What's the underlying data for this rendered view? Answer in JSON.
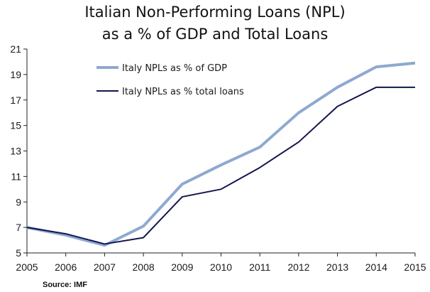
{
  "chart_data": {
    "type": "line",
    "title_line1": "Italian Non-Performing Loans (NPL)",
    "title_line2": "as a % of GDP and Total Loans",
    "xlabel": "",
    "ylabel": "",
    "x": [
      2005,
      2006,
      2007,
      2008,
      2009,
      2010,
      2011,
      2012,
      2013,
      2014,
      2015
    ],
    "ylim": [
      5,
      21
    ],
    "yticks": [
      5,
      7,
      9,
      11,
      13,
      15,
      17,
      19,
      21
    ],
    "grid": false,
    "legend_position": "top-left",
    "series": [
      {
        "name": "Italy NPLs as % of GDP",
        "color": "#8ea9d0",
        "values": [
          7.0,
          6.4,
          5.6,
          7.1,
          10.4,
          11.9,
          13.3,
          16.0,
          18.0,
          19.6,
          19.9
        ]
      },
      {
        "name": "Italy NPLs as % total loans",
        "color": "#13154f",
        "values": [
          7.0,
          6.5,
          5.7,
          6.2,
          9.4,
          10.0,
          11.7,
          13.7,
          16.5,
          18.0,
          18.0
        ]
      }
    ],
    "source": "Source: IMF"
  }
}
